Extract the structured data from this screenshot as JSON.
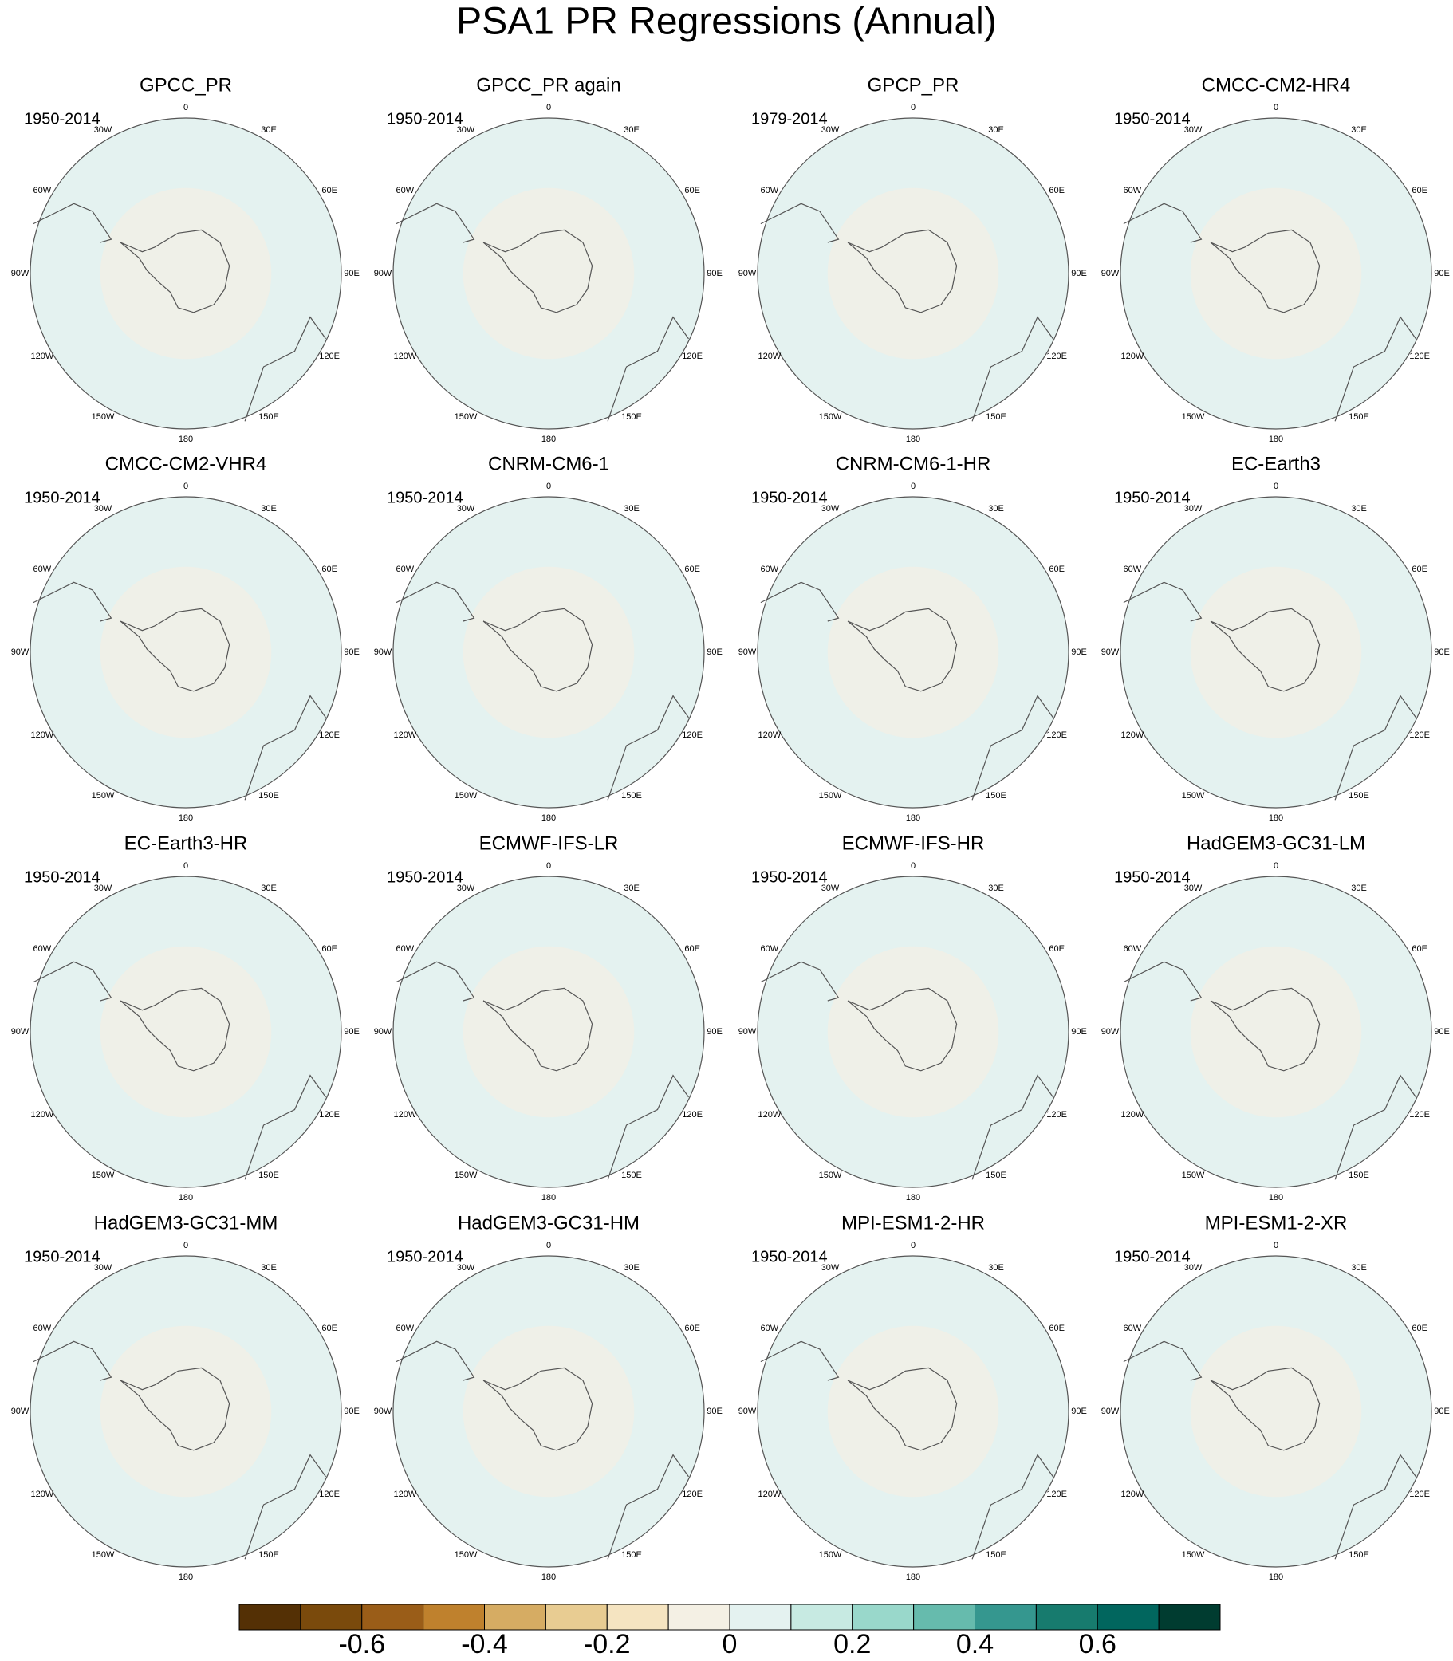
{
  "chart_data": {
    "type": "polar-map-panels",
    "title": "PSA1 PR Regressions (Annual)",
    "lon_labels": [
      "0",
      "30E",
      "60E",
      "90E",
      "120E",
      "150E",
      "180",
      "150W",
      "120W",
      "90W",
      "60W",
      "30W"
    ],
    "panels": [
      {
        "title": "GPCC_PR",
        "period": "1950-2014"
      },
      {
        "title": "GPCC_PR again",
        "period": "1950-2014"
      },
      {
        "title": "GPCP_PR",
        "period": "1979-2014"
      },
      {
        "title": "CMCC-CM2-HR4",
        "period": "1950-2014"
      },
      {
        "title": "CMCC-CM2-VHR4",
        "period": "1950-2014"
      },
      {
        "title": "CNRM-CM6-1",
        "period": "1950-2014"
      },
      {
        "title": "CNRM-CM6-1-HR",
        "period": "1950-2014"
      },
      {
        "title": "EC-Earth3",
        "period": "1950-2014"
      },
      {
        "title": "EC-Earth3-HR",
        "period": "1950-2014"
      },
      {
        "title": "ECMWF-IFS-LR",
        "period": "1950-2014"
      },
      {
        "title": "ECMWF-IFS-HR",
        "period": "1950-2014"
      },
      {
        "title": "HadGEM3-GC31-LM",
        "period": "1950-2014"
      },
      {
        "title": "HadGEM3-GC31-MM",
        "period": "1950-2014"
      },
      {
        "title": "HadGEM3-GC31-HM",
        "period": "1950-2014"
      },
      {
        "title": "MPI-ESM1-2-HR",
        "period": "1950-2014"
      },
      {
        "title": "MPI-ESM1-2-XR",
        "period": "1950-2014"
      }
    ],
    "colorbar": {
      "lim": [
        -0.8,
        0.8
      ],
      "ticks": [
        -0.6,
        -0.4,
        -0.2,
        0,
        0.2,
        0.4,
        0.6
      ],
      "colors": [
        "#543005",
        "#7a4a0c",
        "#9a5d18",
        "#bf812d",
        "#d6ac63",
        "#e8cc92",
        "#f5e4c1",
        "#f4f0e4",
        "#e4f2f0",
        "#c7eae2",
        "#99d8cb",
        "#66bbad",
        "#35978f",
        "#177b6e",
        "#01665e",
        "#003c30"
      ]
    }
  }
}
